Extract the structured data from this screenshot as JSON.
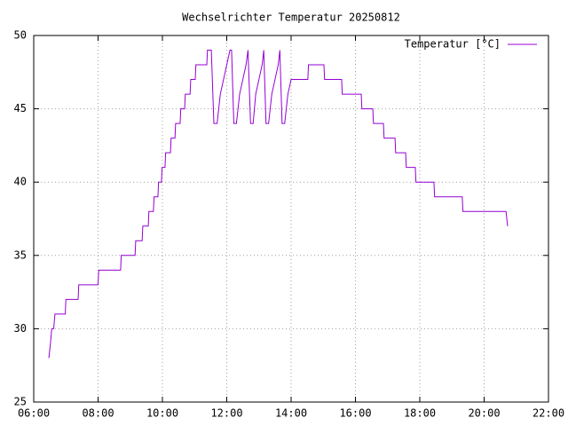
{
  "chart_data": {
    "type": "line",
    "title": "Wechselrichter Temperatur 20250812",
    "series": [
      {
        "name": "Temperatur [°C]",
        "color": "#9400d3",
        "x": [
          6.47,
          6.52,
          6.56,
          6.62,
          6.66,
          6.98,
          7.0,
          7.38,
          7.4,
          8.0,
          8.02,
          8.7,
          8.72,
          9.15,
          9.17,
          9.37,
          9.39,
          9.56,
          9.58,
          9.72,
          9.74,
          9.86,
          9.88,
          9.97,
          9.99,
          10.08,
          10.1,
          10.25,
          10.27,
          10.39,
          10.41,
          10.55,
          10.57,
          10.69,
          10.71,
          10.86,
          10.88,
          11.02,
          11.04,
          11.38,
          11.4,
          11.52,
          11.6,
          11.7,
          11.8,
          11.9,
          12.0,
          12.1,
          12.15,
          12.22,
          12.3,
          12.4,
          12.5,
          12.6,
          12.66,
          12.74,
          12.82,
          12.9,
          13.0,
          13.1,
          13.15,
          13.22,
          13.3,
          13.4,
          13.5,
          13.6,
          13.65,
          13.72,
          13.8,
          13.9,
          14.0,
          14.52,
          14.54,
          15.02,
          15.04,
          15.57,
          15.59,
          16.18,
          16.2,
          16.54,
          16.56,
          16.87,
          16.89,
          17.23,
          17.25,
          17.56,
          17.58,
          17.86,
          17.88,
          18.44,
          18.46,
          19.32,
          19.34,
          20.68,
          20.73
        ],
        "values": [
          28,
          29,
          30,
          30,
          31,
          31,
          32,
          32,
          33,
          33,
          34,
          34,
          35,
          35,
          36,
          36,
          37,
          37,
          38,
          38,
          39,
          39,
          40,
          40,
          41,
          41,
          42,
          42,
          43,
          43,
          44,
          44,
          45,
          45,
          46,
          46,
          47,
          47,
          48,
          48,
          49,
          49,
          44,
          44,
          46,
          47,
          48,
          49,
          49,
          44,
          44,
          46,
          47,
          48,
          49,
          44,
          44,
          46,
          47,
          48,
          49,
          44,
          44,
          46,
          47,
          48,
          49,
          44,
          44,
          46,
          47,
          47,
          48,
          48,
          47,
          47,
          46,
          46,
          45,
          45,
          44,
          44,
          43,
          43,
          42,
          42,
          41,
          41,
          40,
          40,
          39,
          39,
          38,
          38,
          37
        ]
      }
    ],
    "xlim": [
      6,
      22
    ],
    "xticks": [
      {
        "value": 6,
        "label": "06:00"
      },
      {
        "value": 8,
        "label": "08:00"
      },
      {
        "value": 10,
        "label": "10:00"
      },
      {
        "value": 12,
        "label": "12:00"
      },
      {
        "value": 14,
        "label": "14:00"
      },
      {
        "value": 16,
        "label": "16:00"
      },
      {
        "value": 18,
        "label": "18:00"
      },
      {
        "value": 20,
        "label": "20:00"
      },
      {
        "value": 22,
        "label": "22:00"
      }
    ],
    "ylim": [
      25,
      50
    ],
    "yticks": [
      25,
      30,
      35,
      40,
      45,
      50
    ],
    "grid": true,
    "legend": "top-right"
  }
}
